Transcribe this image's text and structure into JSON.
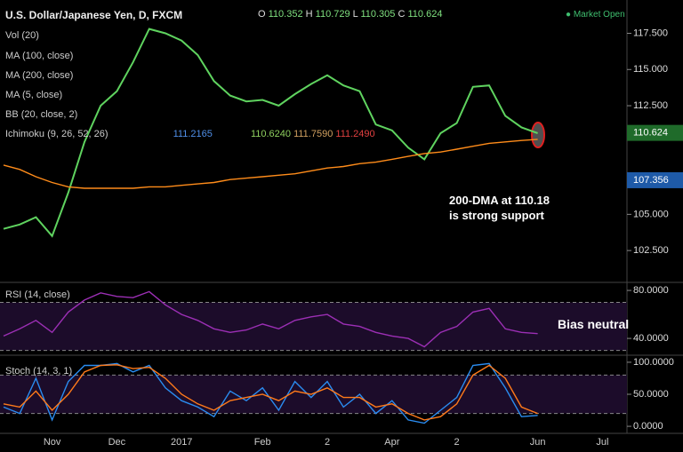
{
  "chart_data": [
    {
      "type": "line",
      "title": "U.S. Dollar/Japanese Yen, D, FXCM",
      "ohlc_labels": [
        "O",
        "H",
        "L",
        "C"
      ],
      "ohlc_values": [
        110.352,
        110.729,
        110.305,
        110.624
      ],
      "status": "Market Open",
      "indicators": [
        "Vol (20)",
        "MA (100, close)",
        "MA (200, close)",
        "MA (5, close)",
        "BB (20, close, 2)",
        "Ichimoku (9, 26, 52, 26)"
      ],
      "ichimoku_values": [
        "111.2165",
        "110.6240",
        "111.7590",
        "111.2490"
      ],
      "annotation": [
        "200-DMA at 110.18",
        "is strong support"
      ],
      "categories": [
        null,
        null,
        null,
        "Nov",
        null,
        null,
        null,
        "Dec",
        null,
        null,
        null,
        "2017",
        null,
        null,
        null,
        null,
        "Feb",
        null,
        null,
        null,
        "2",
        null,
        null,
        null,
        "Apr",
        null,
        null,
        null,
        "2",
        null,
        null,
        null,
        null,
        "Jun",
        null,
        null,
        null,
        "Jul",
        null
      ],
      "series": [
        {
          "name": "Price",
          "color": "#5fd35f",
          "values": [
            104.0,
            104.3,
            104.8,
            103.5,
            106.5,
            110.0,
            112.5,
            113.5,
            115.5,
            117.8,
            117.5,
            117.0,
            116.0,
            114.2,
            113.2,
            112.8,
            112.9,
            112.5,
            113.3,
            114.0,
            114.6,
            113.9,
            113.5,
            111.2,
            110.8,
            109.6,
            108.8,
            110.6,
            111.3,
            113.8,
            113.9,
            111.8,
            111.0,
            110.6,
            null,
            null,
            null,
            null,
            null
          ]
        },
        {
          "name": "MA (200, close)",
          "color": "#ff8c1a",
          "values": [
            108.4,
            108.1,
            107.6,
            107.2,
            106.9,
            106.8,
            106.8,
            106.8,
            106.8,
            106.9,
            106.9,
            107.0,
            107.1,
            107.2,
            107.4,
            107.5,
            107.6,
            107.7,
            107.8,
            108.0,
            108.2,
            108.3,
            108.5,
            108.6,
            108.8,
            109.0,
            109.2,
            109.3,
            109.5,
            109.7,
            109.9,
            110.0,
            110.1,
            110.18,
            null,
            null,
            null,
            null,
            null
          ]
        }
      ],
      "price_tags": [
        110.624,
        107.356
      ],
      "price_tag_colors": [
        "#1f6b2a",
        "#1e5aa8"
      ],
      "ylim": [
        100.3,
        119.8
      ],
      "yticks": [
        {
          "value": 102.5,
          "label": "102.500"
        },
        {
          "value": 105,
          "label": "105.000"
        },
        {
          "value": 112.5,
          "label": "112.500"
        },
        {
          "value": 115,
          "label": "115.000"
        },
        {
          "value": 117.5,
          "label": "117.500"
        }
      ]
    },
    {
      "type": "line",
      "title": "RSI (14, close)",
      "annotation": [
        "Bias neutral"
      ],
      "series": [
        {
          "name": "RSI",
          "color": "#9c2fb5",
          "values": [
            42,
            48,
            55,
            45,
            62,
            72,
            78,
            75,
            74,
            79,
            68,
            60,
            55,
            48,
            45,
            47,
            52,
            48,
            55,
            58,
            60,
            52,
            50,
            45,
            42,
            40,
            33,
            45,
            50,
            62,
            65,
            48,
            45,
            44,
            null,
            null,
            null,
            null,
            null
          ]
        }
      ],
      "bands": [
        30,
        70
      ],
      "ylim": [
        26,
        86.7
      ],
      "yticks": [
        {
          "value": 40,
          "label": "40.0000"
        },
        {
          "value": 80,
          "label": "80.0000"
        }
      ]
    },
    {
      "type": "line",
      "title": "Stoch (14, 3, 1)",
      "series": [
        {
          "name": "%K",
          "color": "#2a8cf0",
          "values": [
            30,
            20,
            75,
            10,
            70,
            95,
            95,
            98,
            85,
            95,
            60,
            40,
            30,
            15,
            55,
            40,
            60,
            25,
            70,
            45,
            70,
            30,
            50,
            20,
            40,
            10,
            5,
            25,
            45,
            95,
            98,
            60,
            15,
            17,
            null,
            null,
            null,
            null,
            null
          ]
        },
        {
          "name": "%D",
          "color": "#ff7a1a",
          "values": [
            35,
            30,
            55,
            25,
            50,
            85,
            95,
            96,
            90,
            92,
            75,
            50,
            35,
            25,
            40,
            45,
            50,
            40,
            55,
            50,
            60,
            45,
            45,
            30,
            35,
            20,
            10,
            15,
            35,
            80,
            95,
            75,
            30,
            20,
            null,
            null,
            null,
            null,
            null
          ]
        }
      ],
      "bands": [
        20,
        80
      ],
      "ylim": [
        -11,
        111
      ],
      "yticks": [
        {
          "value": 0,
          "label": "0.0000"
        },
        {
          "value": 50,
          "label": "50.0000"
        },
        {
          "value": 100,
          "label": "100.0000"
        }
      ]
    }
  ]
}
